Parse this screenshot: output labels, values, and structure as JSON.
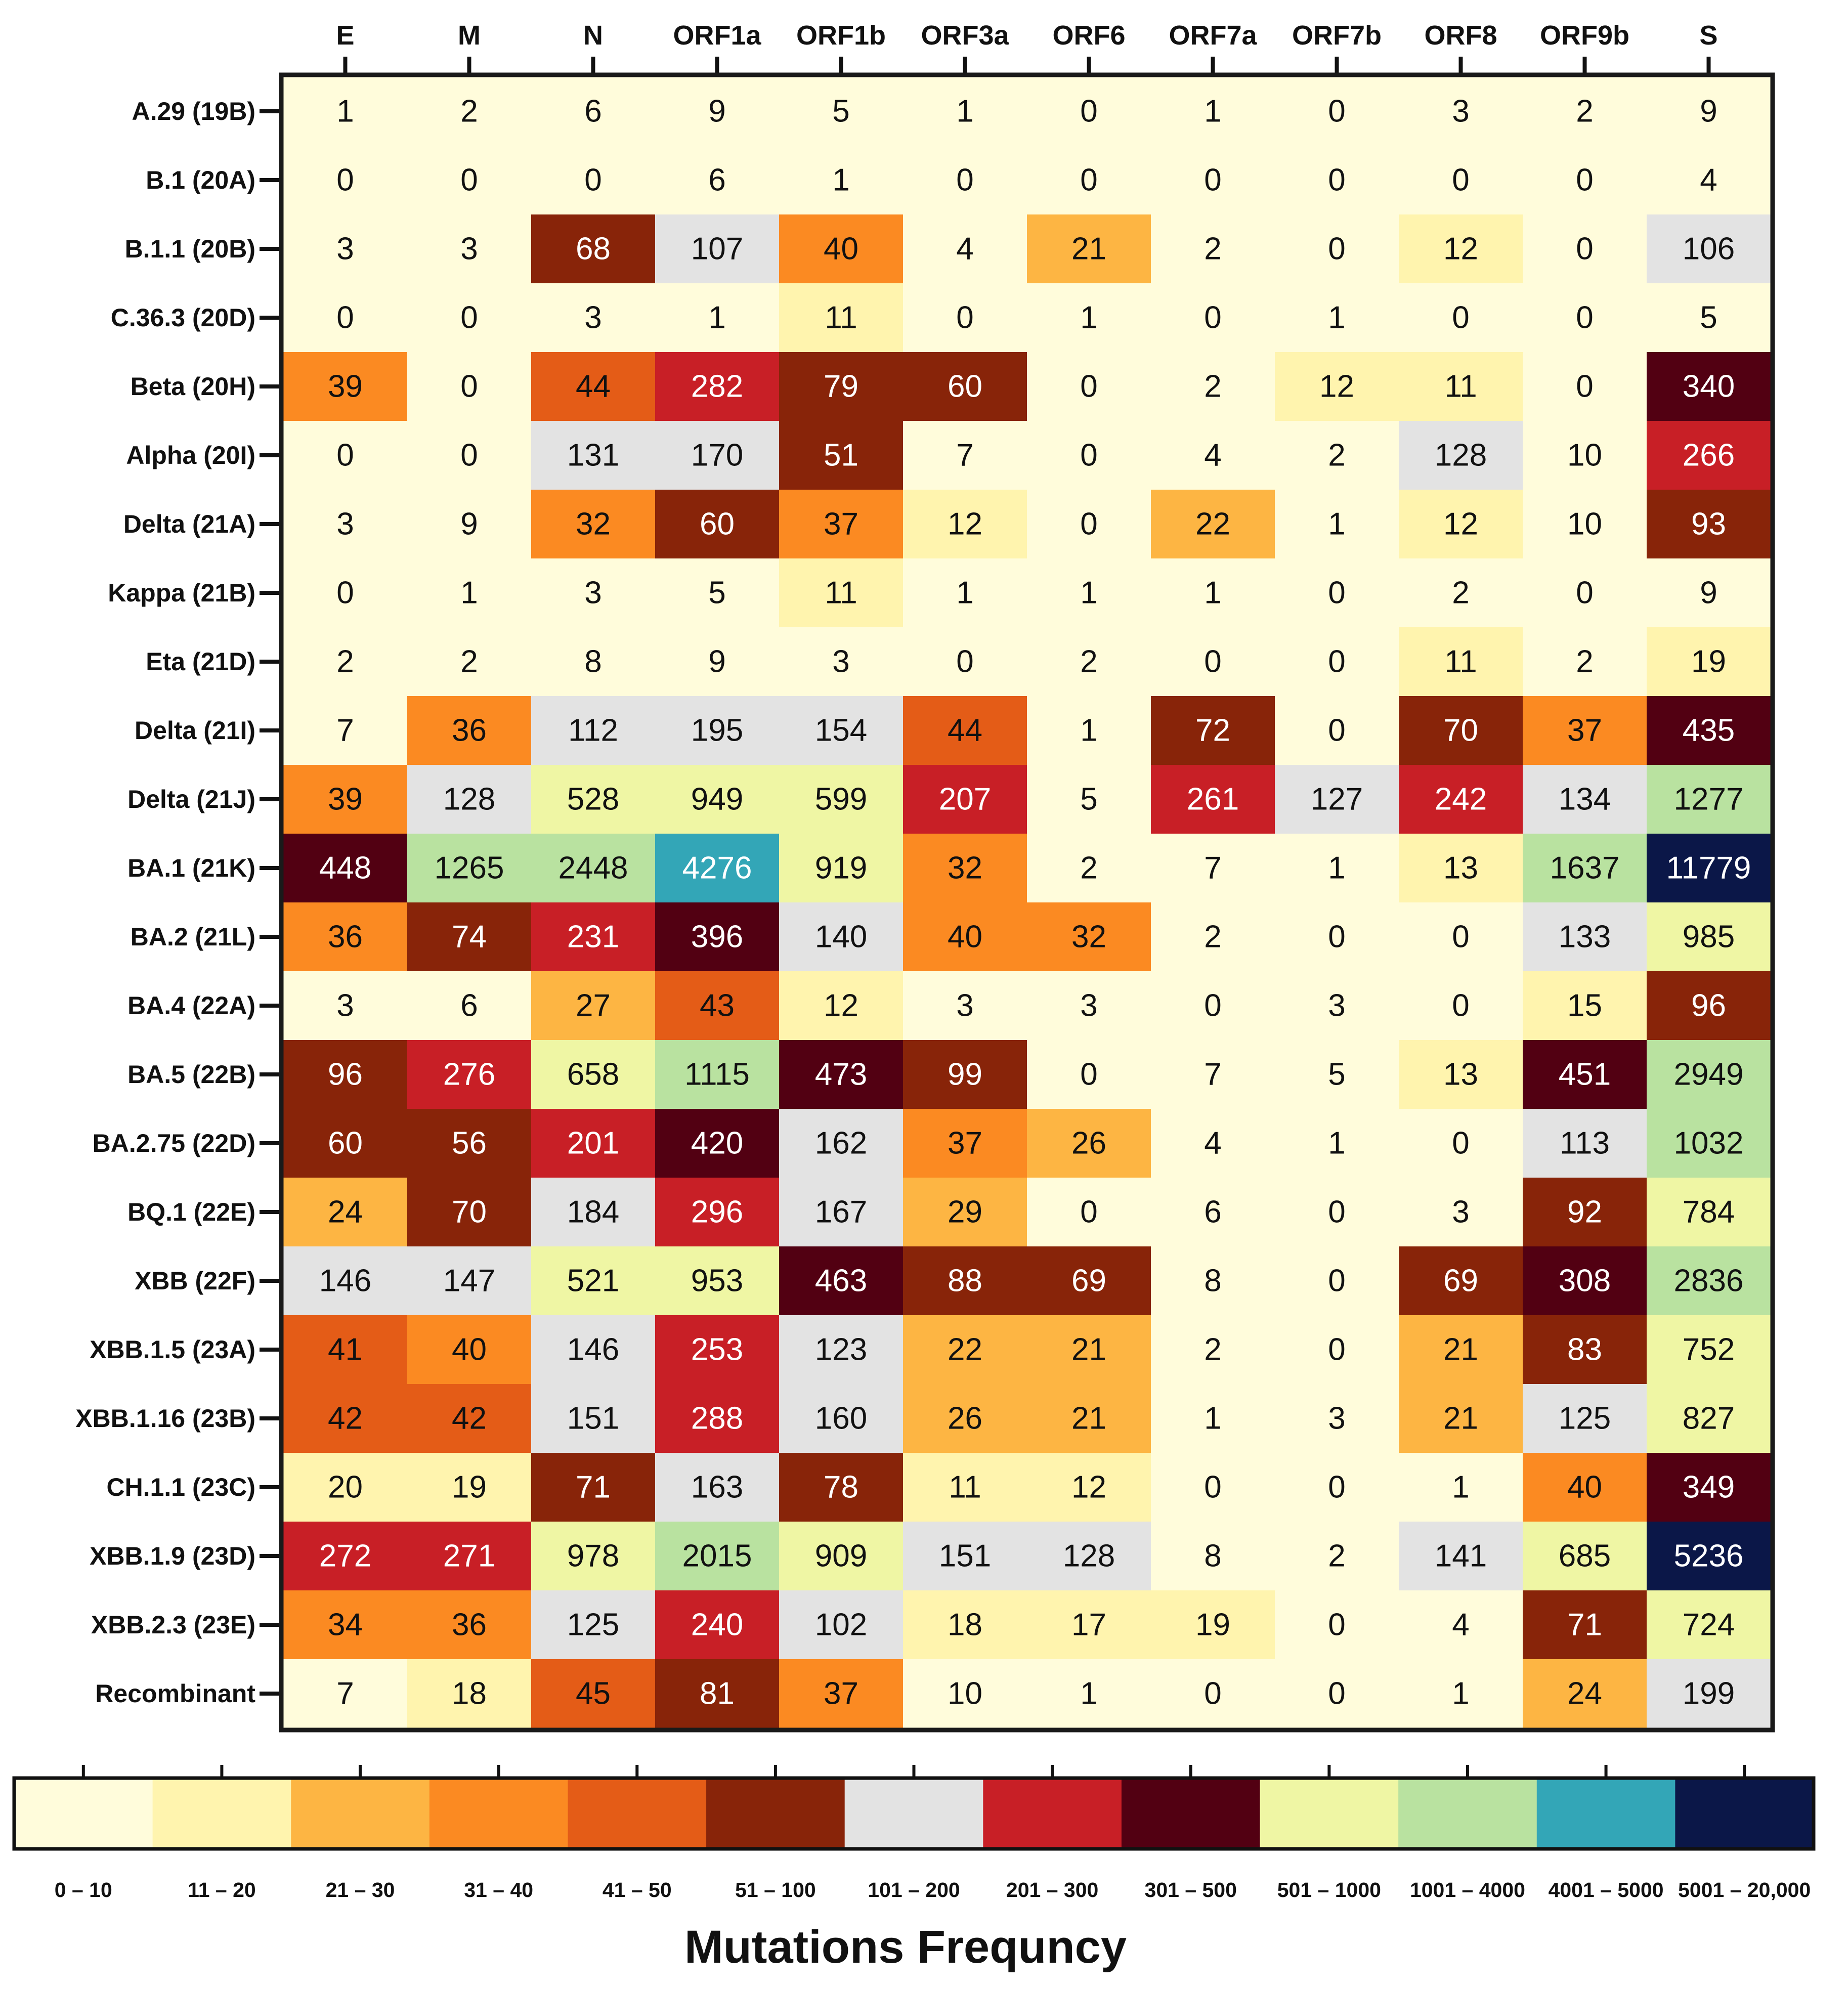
{
  "chart_data": {
    "type": "heatmap",
    "title": "",
    "columns": [
      "E",
      "M",
      "N",
      "ORF1a",
      "ORF1b",
      "ORF3a",
      "ORF6",
      "ORF7a",
      "ORF7b",
      "ORF8",
      "ORF9b",
      "S"
    ],
    "rows": [
      "A.29 (19B)",
      "B.1 (20A)",
      "B.1.1 (20B)",
      "C.36.3 (20D)",
      "Beta (20H)",
      "Alpha (20I)",
      "Delta (21A)",
      "Kappa (21B)",
      "Eta (21D)",
      "Delta (21I)",
      "Delta (21J)",
      "BA.1 (21K)",
      "BA.2 (21L)",
      "BA.4 (22A)",
      "BA.5 (22B)",
      "BA.2.75 (22D)",
      "BQ.1 (22E)",
      "XBB (22F)",
      "XBB.1.5 (23A)",
      "XBB.1.16 (23B)",
      "CH.1.1 (23C)",
      "XBB.1.9 (23D)",
      "XBB.2.3 (23E)",
      "Recombinant"
    ],
    "values": [
      [
        1,
        2,
        6,
        9,
        5,
        1,
        0,
        1,
        0,
        3,
        2,
        9
      ],
      [
        0,
        0,
        0,
        6,
        1,
        0,
        0,
        0,
        0,
        0,
        0,
        4
      ],
      [
        3,
        3,
        68,
        107,
        40,
        4,
        21,
        2,
        0,
        12,
        0,
        106
      ],
      [
        0,
        0,
        3,
        1,
        11,
        0,
        1,
        0,
        1,
        0,
        0,
        5
      ],
      [
        39,
        0,
        44,
        282,
        79,
        60,
        0,
        2,
        12,
        11,
        0,
        340
      ],
      [
        0,
        0,
        131,
        170,
        51,
        7,
        0,
        4,
        2,
        128,
        10,
        266
      ],
      [
        3,
        9,
        32,
        60,
        37,
        12,
        0,
        22,
        1,
        12,
        10,
        93
      ],
      [
        0,
        1,
        3,
        5,
        11,
        1,
        1,
        1,
        0,
        2,
        0,
        9
      ],
      [
        2,
        2,
        8,
        9,
        3,
        0,
        2,
        0,
        0,
        11,
        2,
        19
      ],
      [
        7,
        36,
        112,
        195,
        154,
        44,
        1,
        72,
        0,
        70,
        37,
        435
      ],
      [
        39,
        128,
        528,
        949,
        599,
        207,
        5,
        261,
        127,
        242,
        134,
        1277
      ],
      [
        448,
        1265,
        2448,
        4276,
        919,
        32,
        2,
        7,
        1,
        13,
        1637,
        11779
      ],
      [
        36,
        74,
        231,
        396,
        140,
        40,
        32,
        2,
        0,
        0,
        133,
        985
      ],
      [
        3,
        6,
        27,
        43,
        12,
        3,
        3,
        0,
        3,
        0,
        15,
        96
      ],
      [
        96,
        276,
        658,
        1115,
        473,
        99,
        0,
        7,
        5,
        13,
        451,
        2949
      ],
      [
        60,
        56,
        201,
        420,
        162,
        37,
        26,
        4,
        1,
        0,
        113,
        1032
      ],
      [
        24,
        70,
        184,
        296,
        167,
        29,
        0,
        6,
        0,
        3,
        92,
        784
      ],
      [
        146,
        147,
        521,
        953,
        463,
        88,
        69,
        8,
        0,
        69,
        308,
        2836
      ],
      [
        41,
        40,
        146,
        253,
        123,
        22,
        21,
        2,
        0,
        21,
        83,
        752
      ],
      [
        42,
        42,
        151,
        288,
        160,
        26,
        21,
        1,
        3,
        21,
        125,
        827
      ],
      [
        20,
        19,
        71,
        163,
        78,
        11,
        12,
        0,
        0,
        1,
        40,
        349
      ],
      [
        272,
        271,
        978,
        2015,
        909,
        151,
        128,
        8,
        2,
        141,
        685,
        5236
      ],
      [
        34,
        36,
        125,
        240,
        102,
        18,
        17,
        19,
        0,
        4,
        71,
        724
      ],
      [
        7,
        18,
        45,
        81,
        37,
        10,
        1,
        0,
        0,
        1,
        24,
        199
      ]
    ],
    "legend": {
      "title": "Mutations Frequncy",
      "position": "bottom",
      "bins": [
        {
          "label": "0 – 10",
          "min": 0,
          "max": 10,
          "color": "#FFFCDB"
        },
        {
          "label": "11 – 20",
          "min": 11,
          "max": 20,
          "color": "#FFF4AE"
        },
        {
          "label": "21 – 30",
          "min": 21,
          "max": 30,
          "color": "#FDB543"
        },
        {
          "label": "31 – 40",
          "min": 31,
          "max": 40,
          "color": "#FB8A22"
        },
        {
          "label": "41 – 50",
          "min": 41,
          "max": 50,
          "color": "#E45C17"
        },
        {
          "label": "51 – 100",
          "min": 51,
          "max": 100,
          "color": "#882409"
        },
        {
          "label": "101 – 200",
          "min": 101,
          "max": 200,
          "color": "#E3E3E3"
        },
        {
          "label": "201 – 300",
          "min": 201,
          "max": 300,
          "color": "#C81F26"
        },
        {
          "label": "301 – 500",
          "min": 301,
          "max": 500,
          "color": "#520012"
        },
        {
          "label": "501 – 1000",
          "min": 501,
          "max": 1000,
          "color": "#EFF6A4"
        },
        {
          "label": "1001 – 4000",
          "min": 1001,
          "max": 4000,
          "color": "#B9E2A0"
        },
        {
          "label": "4001 – 5000",
          "min": 4001,
          "max": 5000,
          "color": "#33A6B7"
        },
        {
          "label": "5001 – 20,000",
          "min": 5001,
          "max": 20000,
          "color": "#0B1748"
        }
      ]
    },
    "colors": {
      "text_dark": "#111111",
      "text_light": "#ffffff",
      "border": "#1a1a1a"
    }
  }
}
